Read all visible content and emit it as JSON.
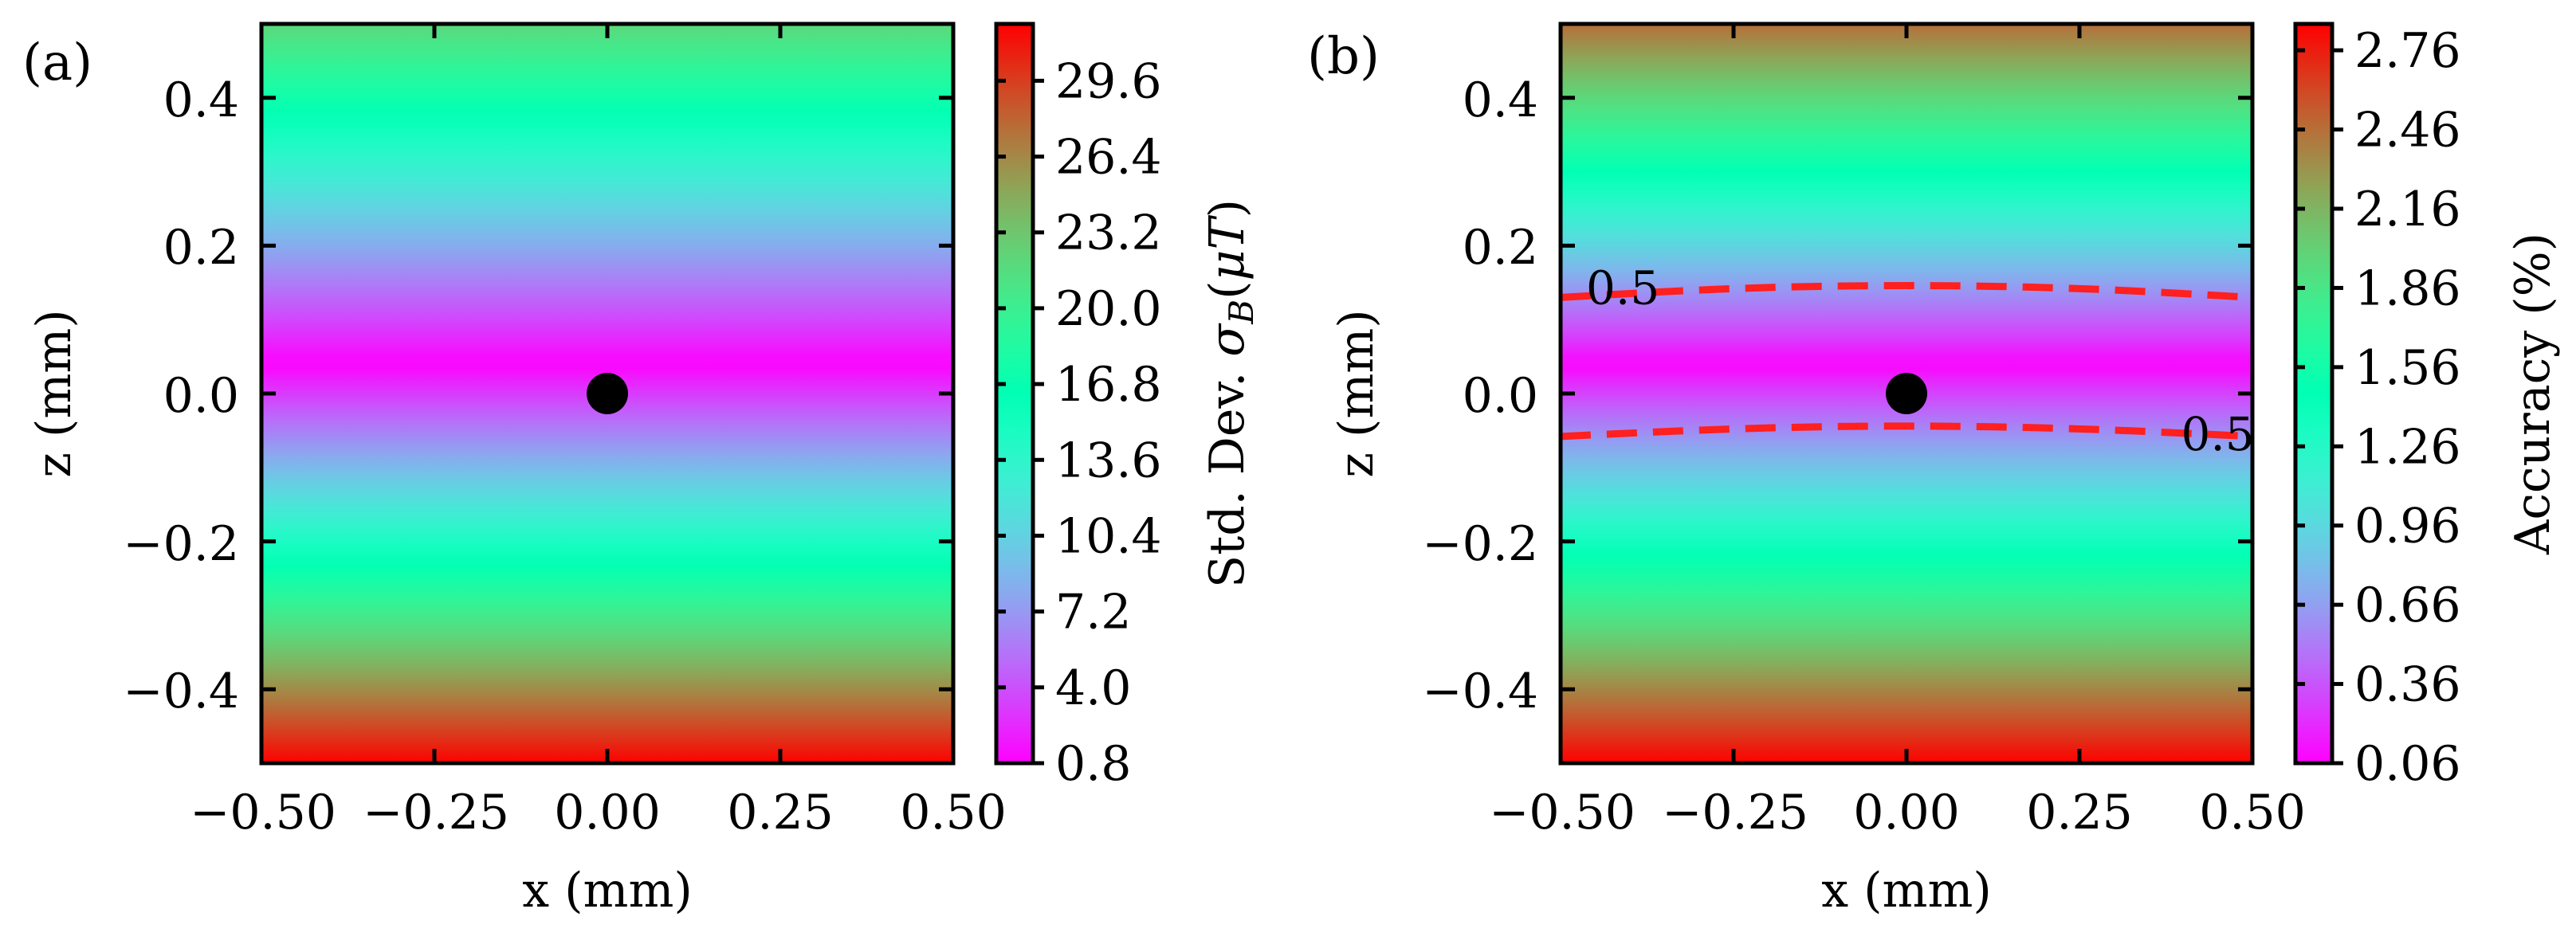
{
  "chart_data": [
    {
      "type": "heatmap",
      "panel_label": "(a)",
      "xlabel": "x (mm)",
      "ylabel": "z (mm)",
      "xlim": [
        -0.5,
        0.5
      ],
      "ylim": [
        -0.5,
        0.5
      ],
      "xticks": [
        -0.5,
        -0.25,
        0.0,
        0.25,
        0.5
      ],
      "xtick_labels": [
        "−0.50",
        "−0.25",
        "0.00",
        "0.25",
        "0.50"
      ],
      "yticks": [
        -0.4,
        -0.2,
        0.0,
        0.2,
        0.4
      ],
      "ytick_labels": [
        "−0.4",
        "−0.2",
        "0.0",
        "0.2",
        "0.4"
      ],
      "field": {
        "model": "abs_z",
        "center_z": 0.04,
        "min": 0.8,
        "max_at_top": 22.0,
        "max_at_bottom": 32.0
      },
      "marker": {
        "x": 0.0,
        "z": 0.0,
        "color": "#000000"
      },
      "colorbar": {
        "label": "Std. Dev. σB(μT)",
        "label_main": "Std. Dev. ",
        "label_sigma": "σ",
        "label_sub": "B",
        "label_open": "(",
        "label_mu": "μ",
        "label_unit": "T",
        "label_close": ")",
        "range": [
          0.8,
          32.0
        ],
        "ticks": [
          0.8,
          4.0,
          7.2,
          10.4,
          13.6,
          16.8,
          20.0,
          23.2,
          26.4,
          29.6
        ],
        "tick_labels": [
          "0.8",
          "4.0",
          "7.2",
          "10.4",
          "13.6",
          "16.8",
          "20.0",
          "23.2",
          "26.4",
          "29.6"
        ]
      }
    },
    {
      "type": "heatmap",
      "panel_label": "(b)",
      "xlabel": "x (mm)",
      "ylabel": "z (mm)",
      "xlim": [
        -0.5,
        0.5
      ],
      "ylim": [
        -0.5,
        0.5
      ],
      "xticks": [
        -0.5,
        -0.25,
        0.0,
        0.25,
        0.5
      ],
      "xtick_labels": [
        "−0.50",
        "−0.25",
        "0.00",
        "0.25",
        "0.50"
      ],
      "yticks": [
        -0.4,
        -0.2,
        0.0,
        0.2,
        0.4
      ],
      "ytick_labels": [
        "−0.4",
        "−0.2",
        "0.0",
        "0.2",
        "0.4"
      ],
      "field": {
        "model": "abs_z_curved",
        "center_z": 0.04,
        "min": 0.06,
        "max": 2.86
      },
      "marker": {
        "x": 0.0,
        "z": 0.0,
        "color": "#000000"
      },
      "contours": {
        "level": 0.5,
        "label": "0.5",
        "color": "#ff2020",
        "style": "dashed",
        "upper": {
          "x": [
            -0.5,
            -0.25,
            0.0,
            0.25,
            0.5
          ],
          "z": [
            0.13,
            0.143,
            0.147,
            0.143,
            0.13
          ]
        },
        "lower": {
          "x": [
            -0.5,
            -0.25,
            0.0,
            0.25,
            0.5
          ],
          "z": [
            -0.058,
            -0.047,
            -0.043,
            -0.047,
            -0.058
          ]
        },
        "label_positions": [
          {
            "x": -0.41,
            "z": 0.143
          },
          {
            "x": 0.45,
            "z": -0.055
          }
        ]
      },
      "colorbar": {
        "label": "Accuracy (%)",
        "range": [
          0.06,
          2.86
        ],
        "ticks": [
          0.06,
          0.36,
          0.66,
          0.96,
          1.26,
          1.56,
          1.86,
          2.16,
          2.46,
          2.76
        ],
        "tick_labels": [
          "0.06",
          "0.36",
          "0.66",
          "0.96",
          "1.26",
          "1.56",
          "1.86",
          "2.16",
          "2.46",
          "2.76"
        ]
      }
    }
  ]
}
